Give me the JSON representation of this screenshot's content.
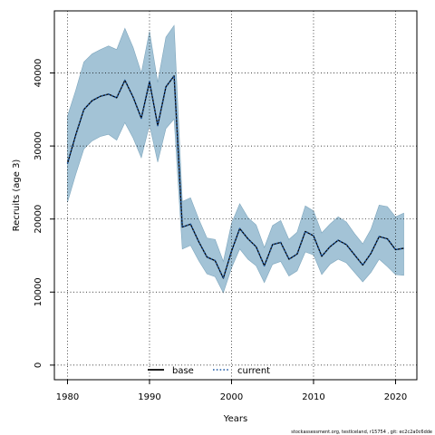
{
  "chart_data": {
    "type": "line",
    "xlabel": "Years",
    "ylabel": "Recruits (age 3)",
    "xlim": [
      1978.4,
      2022.6
    ],
    "ylim": [
      -2000,
      48500
    ],
    "xticks": [
      1980,
      1990,
      2000,
      2010,
      2020
    ],
    "yticks": [
      0,
      10000,
      20000,
      30000,
      40000
    ],
    "grid": true,
    "legend_position": "bottom-center",
    "x": [
      1980,
      1981,
      1982,
      1983,
      1984,
      1985,
      1986,
      1987,
      1988,
      1989,
      1990,
      1991,
      1992,
      1993,
      1994,
      1995,
      1996,
      1997,
      1998,
      1999,
      2000,
      2001,
      2002,
      2003,
      2004,
      2005,
      2006,
      2007,
      2008,
      2009,
      2010,
      2011,
      2012,
      2013,
      2014,
      2015,
      2016,
      2017,
      2018,
      2019,
      2020,
      2021
    ],
    "series": [
      {
        "name": "base",
        "style": "solid",
        "color": "#000000",
        "values": [
          27600,
          31500,
          35000,
          36200,
          36800,
          37100,
          36600,
          39000,
          36700,
          33800,
          38800,
          32800,
          38100,
          39600,
          18900,
          19300,
          16900,
          14800,
          14300,
          11900,
          15600,
          18700,
          17300,
          16200,
          13600,
          16500,
          16800,
          14500,
          15200,
          18300,
          17700,
          14900,
          16200,
          17100,
          16500,
          15100,
          13700,
          15300,
          17600,
          17300,
          15800,
          16000
        ]
      },
      {
        "name": "current",
        "style": "dotted",
        "color": "#1f5aa6",
        "values": [
          27600,
          31500,
          35000,
          36200,
          36800,
          37100,
          36600,
          39000,
          36700,
          33800,
          38800,
          32800,
          38100,
          39600,
          18900,
          19300,
          16900,
          14800,
          14300,
          11900,
          15600,
          18700,
          17300,
          16200,
          13600,
          16500,
          16800,
          14500,
          15200,
          18300,
          17700,
          14900,
          16200,
          17100,
          16500,
          15100,
          13700,
          15300,
          17600,
          17300,
          15800,
          16000
        ]
      }
    ],
    "band": {
      "color": "#a3c3d6",
      "edge_color": "#7ea6bd",
      "lower": [
        22300,
        26100,
        29600,
        30700,
        31300,
        31600,
        30800,
        33200,
        31100,
        28400,
        32900,
        27800,
        32400,
        33700,
        15900,
        16400,
        14300,
        12500,
        12100,
        9900,
        13300,
        15900,
        14500,
        13600,
        11300,
        13800,
        14200,
        12200,
        12900,
        15500,
        15100,
        12400,
        13800,
        14500,
        14000,
        12700,
        11400,
        12700,
        14500,
        13500,
        12400,
        12300
      ],
      "upper": [
        34100,
        37600,
        41500,
        42600,
        43200,
        43700,
        43200,
        46100,
        43500,
        40000,
        45700,
        38700,
        44900,
        46500,
        22400,
        22900,
        20000,
        17400,
        17200,
        14200,
        19400,
        22100,
        20200,
        19200,
        16100,
        19100,
        19800,
        17200,
        18200,
        21800,
        21100,
        18100,
        19300,
        20300,
        19600,
        18000,
        16600,
        18600,
        21900,
        21700,
        20300,
        20800
      ]
    }
  },
  "footer": "stockassessment.org, testIceland, r15754 ,  git: ec2c2a0c6dde"
}
